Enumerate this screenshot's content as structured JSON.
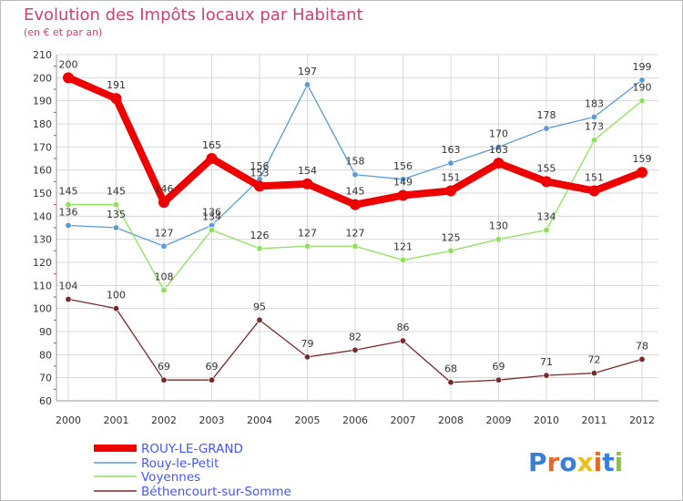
{
  "chart_data": {
    "type": "line",
    "title": "Evolution des Impôts locaux par Habitant",
    "subtitle": "(en € et par an)",
    "xlabel": "",
    "ylabel": "",
    "ylim": [
      60,
      210
    ],
    "yticks": [
      60,
      70,
      80,
      90,
      100,
      110,
      120,
      130,
      140,
      150,
      160,
      170,
      180,
      190,
      200,
      210
    ],
    "grid": true,
    "legend_position": "bottom-left",
    "categories": [
      "2000",
      "2001",
      "2002",
      "2003",
      "2004",
      "2005",
      "2006",
      "2007",
      "2008",
      "2009",
      "2010",
      "2011",
      "2012"
    ],
    "series": [
      {
        "name": "ROUY-LE-GRAND",
        "color": "#ee0000",
        "values": [
          200,
          191,
          146,
          165,
          153,
          154,
          145,
          149,
          151,
          163,
          155,
          151,
          159
        ]
      },
      {
        "name": "Rouy-le-Petit",
        "color": "#5a9bd5",
        "values": [
          136,
          135,
          127,
          136,
          156,
          197,
          158,
          156,
          163,
          170,
          178,
          183,
          199
        ]
      },
      {
        "name": "Voyennes",
        "color": "#8fe05a",
        "values": [
          145,
          145,
          108,
          134,
          126,
          127,
          127,
          121,
          125,
          130,
          134,
          173,
          190
        ]
      },
      {
        "name": "Béthencourt-sur-Somme",
        "color": "#7a2a2a",
        "values": [
          104,
          100,
          69,
          69,
          95,
          79,
          82,
          86,
          68,
          69,
          71,
          72,
          78
        ]
      }
    ]
  },
  "branding": {
    "logo_text": "Proxiti"
  }
}
